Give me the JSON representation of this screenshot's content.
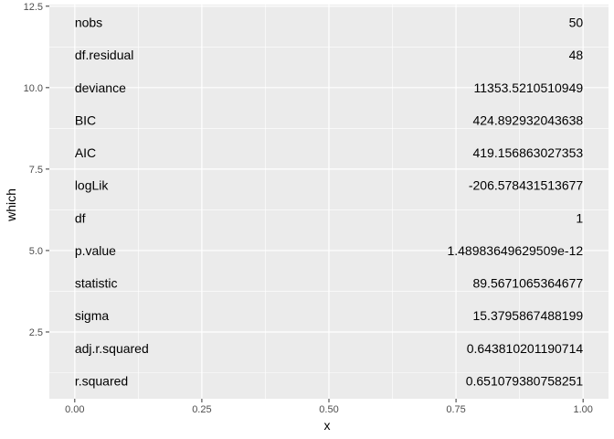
{
  "chart_data": {
    "type": "table",
    "xlabel": "x",
    "ylabel": "which",
    "xlim": [
      -0.05,
      1.05
    ],
    "ylim": [
      0.45,
      12.55
    ],
    "x_ticks": [
      {
        "value": 0.0,
        "label": "0.00"
      },
      {
        "value": 0.25,
        "label": "0.25"
      },
      {
        "value": 0.5,
        "label": "0.50"
      },
      {
        "value": 0.75,
        "label": "0.75"
      },
      {
        "value": 1.0,
        "label": "1.00"
      }
    ],
    "y_ticks": [
      {
        "value": 2.5,
        "label": "2.5"
      },
      {
        "value": 5.0,
        "label": "5.0"
      },
      {
        "value": 7.5,
        "label": "7.5"
      },
      {
        "value": 10.0,
        "label": "10.0"
      },
      {
        "value": 12.5,
        "label": "12.5"
      }
    ],
    "grid": true,
    "rows": [
      {
        "y": 12,
        "name": "nobs",
        "value": "50"
      },
      {
        "y": 11,
        "name": "df.residual",
        "value": "48"
      },
      {
        "y": 10,
        "name": "deviance",
        "value": "11353.5210510949"
      },
      {
        "y": 9,
        "name": "BIC",
        "value": "424.892932043638"
      },
      {
        "y": 8,
        "name": "AIC",
        "value": "419.156863027353"
      },
      {
        "y": 7,
        "name": "logLik",
        "value": "-206.578431513677"
      },
      {
        "y": 6,
        "name": "df",
        "value": "1"
      },
      {
        "y": 5,
        "name": "p.value",
        "value": "1.48983649629509e-12"
      },
      {
        "y": 4,
        "name": "statistic",
        "value": "89.5671065364677"
      },
      {
        "y": 3,
        "name": "sigma",
        "value": "15.3795867488199"
      },
      {
        "y": 2,
        "name": "adj.r.squared",
        "value": "0.643810201190714"
      },
      {
        "y": 1,
        "name": "r.squared",
        "value": "0.651079380758251"
      }
    ],
    "colors": {
      "panel_background": "#ebebeb",
      "grid_major": "#ffffff",
      "text": "#000000",
      "tick_text": "#4d4d4d",
      "tick_mark": "#333333"
    }
  }
}
